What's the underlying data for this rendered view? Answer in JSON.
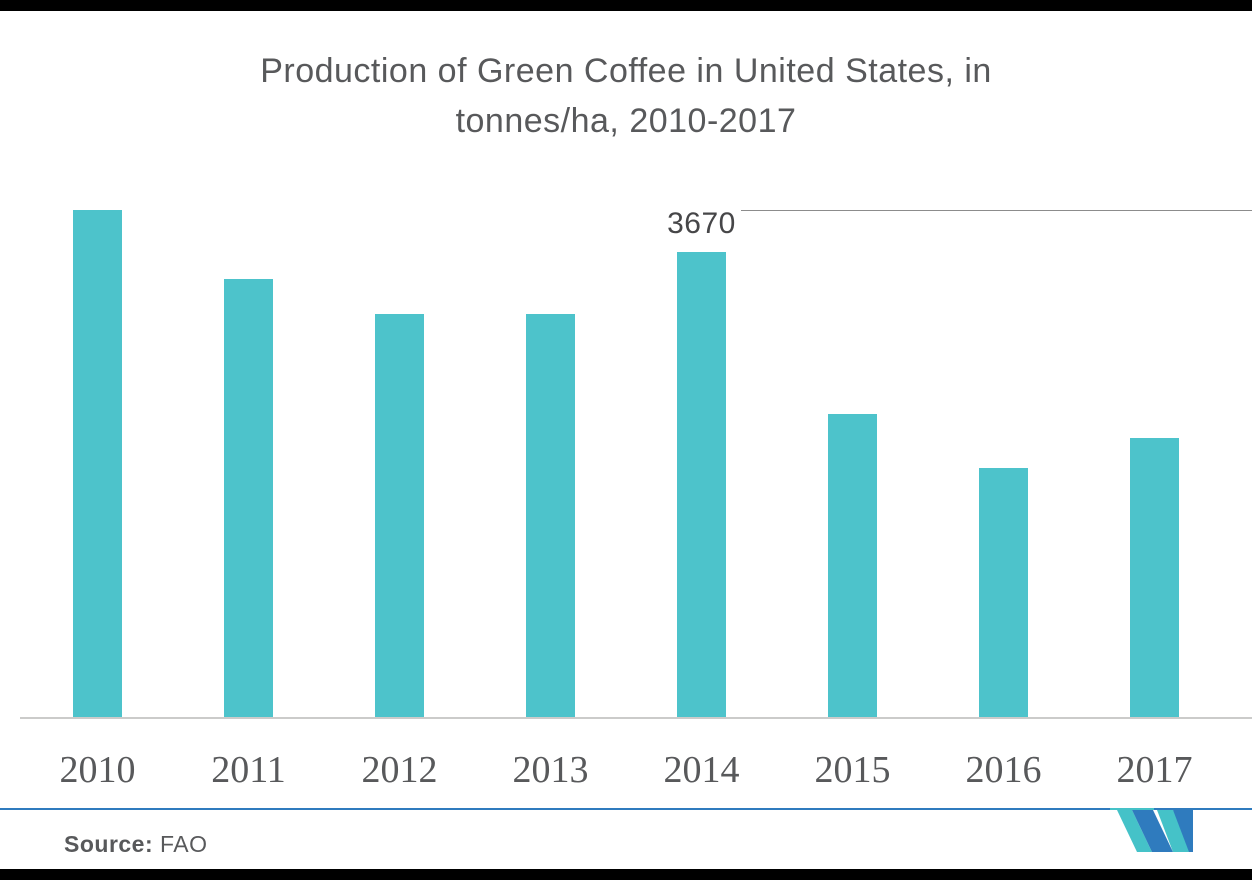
{
  "title": {
    "line1": "Production of Green Coffee in United States, in",
    "line2": "tonnes/ha, 2010-2017"
  },
  "chart_data": {
    "type": "bar",
    "title": "Production of Green Coffee in United States, in tonnes/ha, 2010-2017",
    "categories": [
      "2010",
      "2011",
      "2012",
      "2013",
      "2014",
      "2015",
      "2016",
      "2017"
    ],
    "values": [
      4000,
      3460,
      3180,
      3180,
      3670,
      2400,
      1970,
      2210
    ],
    "value_labels": {
      "2014": "3670"
    },
    "xlabel": "",
    "ylabel": "",
    "ylim": [
      0,
      4000
    ],
    "grid": false,
    "legend": false,
    "bar_color": "#4DC3CB"
  },
  "footer": {
    "source_label": "Source:",
    "source_value": "FAO",
    "logo": "mordor-intelligence-logo"
  },
  "colors": {
    "bar": "#4DC3CB",
    "title_text": "#58595B",
    "axis_line": "#CBCBCA",
    "annotation_line": "#8C8C8C",
    "footer_rule_blue": "#2F7BBE",
    "logo_teal": "#45C2C8",
    "logo_blue": "#2F7BBE",
    "letterbox": "#000000"
  }
}
